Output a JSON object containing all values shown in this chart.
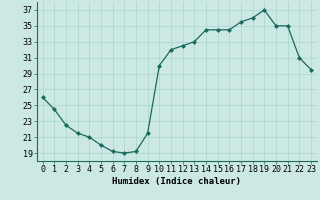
{
  "x": [
    0,
    1,
    2,
    3,
    4,
    5,
    6,
    7,
    8,
    9,
    10,
    11,
    12,
    13,
    14,
    15,
    16,
    17,
    18,
    19,
    20,
    21,
    22,
    23
  ],
  "y": [
    26,
    24.5,
    22.5,
    21.5,
    21,
    20,
    19.2,
    19,
    19.2,
    21.5,
    30,
    32,
    32.5,
    33,
    34.5,
    34.5,
    34.5,
    35.5,
    36,
    37,
    35,
    35,
    31,
    29.5
  ],
  "line_color": "#1a6b5a",
  "marker_color": "#1a6b5a",
  "bg_color": "#cce8e4",
  "grid_color": "#aad4ce",
  "xlabel": "Humidex (Indice chaleur)",
  "xlim": [
    -0.5,
    23.5
  ],
  "ylim": [
    18,
    38
  ],
  "yticks": [
    19,
    21,
    23,
    25,
    27,
    29,
    31,
    33,
    35,
    37
  ],
  "xticks": [
    0,
    1,
    2,
    3,
    4,
    5,
    6,
    7,
    8,
    9,
    10,
    11,
    12,
    13,
    14,
    15,
    16,
    17,
    18,
    19,
    20,
    21,
    22,
    23
  ],
  "xlabel_fontsize": 6.5,
  "tick_fontsize": 6.0
}
